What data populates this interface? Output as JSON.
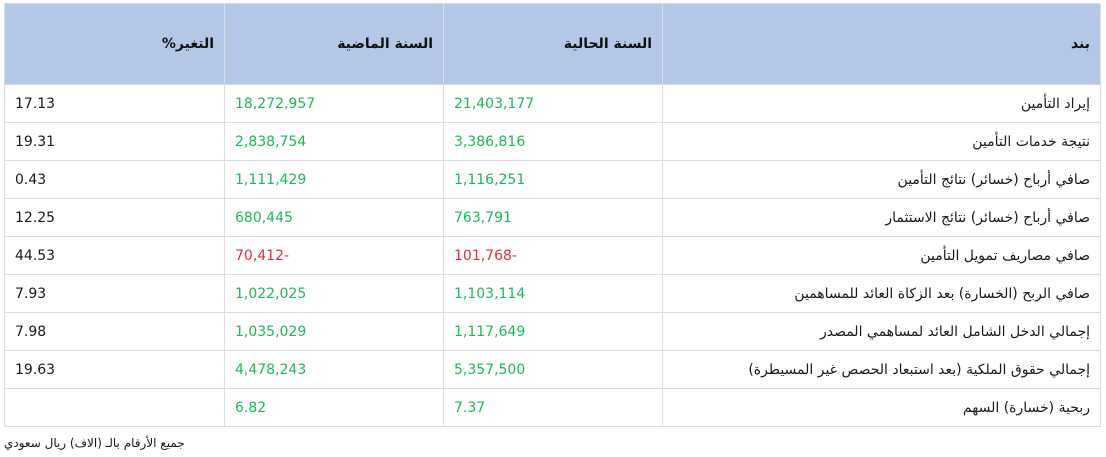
{
  "table": {
    "headers": {
      "item": "بند",
      "current": "السنة الحالية",
      "previous": "السنة الماضية",
      "change": "التغير%"
    },
    "rows": [
      {
        "item": "إيراد التأمين",
        "current": "21,403,177",
        "previous": "18,272,957",
        "change": "17.13"
      },
      {
        "item": "نتيجة خدمات التأمين",
        "current": "3,386,816",
        "previous": "2,838,754",
        "change": "19.31"
      },
      {
        "item": "صافي أرباح (خسائر) نتائج التأمين",
        "current": "1,116,251",
        "previous": "1,111,429",
        "change": "0.43"
      },
      {
        "item": "صافي أرباح (خسائر) نتائج الاستثمار",
        "current": "763,791",
        "previous": "680,445",
        "change": "12.25"
      },
      {
        "item": "صافي مصاريف تمويل التأمين",
        "current": "-101,768",
        "previous": "-70,412",
        "change": "44.53"
      },
      {
        "item": "صافي الربح (الخسارة) بعد الزكاة العائد للمساهمين",
        "current": "1,103,114",
        "previous": "1,022,025",
        "change": "7.93"
      },
      {
        "item": "إجمالي الدخل الشامل العائد لمساهمي المصدر",
        "current": "1,117,649",
        "previous": "1,035,029",
        "change": "7.98"
      },
      {
        "item": "إجمالي حقوق الملكية (بعد استبعاد الحصص غير المسيطرة)",
        "current": "5,357,500",
        "previous": "4,478,243",
        "change": "19.63"
      },
      {
        "item": "ربحية (خسارة) السهم",
        "current": "7.37",
        "previous": "6.82",
        "change": ""
      }
    ]
  },
  "footnote": "جميع الأرقام بالـ (الاف) ريال سعودي",
  "colors": {
    "header_bg": "#b4c7e7",
    "positive": "#1db954",
    "negative": "#e0303a",
    "border": "#d8dde6"
  }
}
